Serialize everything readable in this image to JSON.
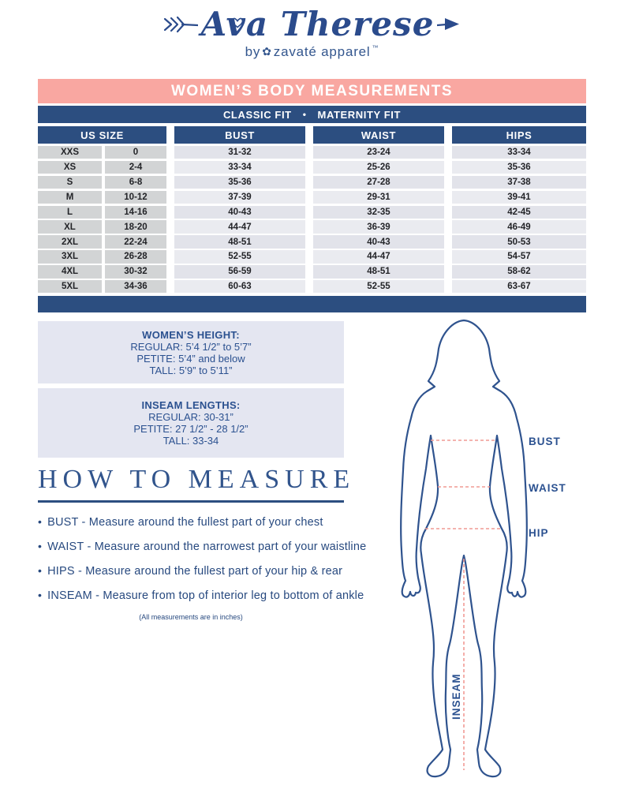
{
  "logo": {
    "title": "Ava Therese",
    "by": "by",
    "brand": "zavaté apparel",
    "tm": "™"
  },
  "banner": {
    "title": "WOMEN’S BODY MEASUREMENTS"
  },
  "fit_bar": {
    "left": "CLASSIC FIT",
    "sep": "•",
    "right": "MATERNITY FIT"
  },
  "size_table": {
    "headers": {
      "us_size": "US SIZE",
      "bust": "BUST",
      "waist": "WAIST",
      "hips": "HIPS"
    },
    "rows": [
      {
        "size": "XXS",
        "us": "0",
        "bust": "31-32",
        "waist": "23-24",
        "hips": "33-34"
      },
      {
        "size": "XS",
        "us": "2-4",
        "bust": "33-34",
        "waist": "25-26",
        "hips": "35-36"
      },
      {
        "size": "S",
        "us": "6-8",
        "bust": "35-36",
        "waist": "27-28",
        "hips": "37-38"
      },
      {
        "size": "M",
        "us": "10-12",
        "bust": "37-39",
        "waist": "29-31",
        "hips": "39-41"
      },
      {
        "size": "L",
        "us": "14-16",
        "bust": "40-43",
        "waist": "32-35",
        "hips": "42-45"
      },
      {
        "size": "XL",
        "us": "18-20",
        "bust": "44-47",
        "waist": "36-39",
        "hips": "46-49"
      },
      {
        "size": "2XL",
        "us": "22-24",
        "bust": "48-51",
        "waist": "40-43",
        "hips": "50-53"
      },
      {
        "size": "3XL",
        "us": "26-28",
        "bust": "52-55",
        "waist": "44-47",
        "hips": "54-57"
      },
      {
        "size": "4XL",
        "us": "30-32",
        "bust": "56-59",
        "waist": "48-51",
        "hips": "58-62"
      },
      {
        "size": "5XL",
        "us": "34-36",
        "bust": "60-63",
        "waist": "52-55",
        "hips": "63-67"
      }
    ]
  },
  "info_boxes": [
    {
      "title": "WOMEN’S HEIGHT:",
      "lines": [
        "REGULAR: 5’4 1/2” to 5’7”",
        "PETITE: 5’4” and below",
        "TALL: 5’9” to 5’11”"
      ]
    },
    {
      "title": "INSEAM LENGTHS:",
      "lines": [
        "REGULAR: 30-31”",
        "PETITE: 27 1/2” - 28 1/2”",
        "TALL: 33-34"
      ]
    }
  ],
  "how_to_measure": {
    "title": "HOW TO MEASURE",
    "bullets": [
      "BUST - Measure around the fullest part of your chest",
      "WAIST - Measure around the narrowest part of your waistline",
      "HIPS - Measure around the fullest part of your hip & rear",
      "INSEAM - Measure from top of interior leg to bottom of ankle"
    ],
    "note": "(All measurements are in inches)"
  },
  "figure": {
    "labels": {
      "bust": "BUST",
      "waist": "WAIST",
      "hip": "HIP",
      "inseam": "INSEAM"
    }
  },
  "icons": {
    "rose": "✿",
    "bullet": "•"
  },
  "colors": {
    "navy": "#2C4E80",
    "logo_navy": "#2B4B8C",
    "pink_banner": "#F9A7A1",
    "dash_pink": "#F19A94",
    "cell_gray": "#D2D4D5",
    "cell_lavender": "#E2E3EA",
    "box_lavender": "#E4E6F1"
  }
}
